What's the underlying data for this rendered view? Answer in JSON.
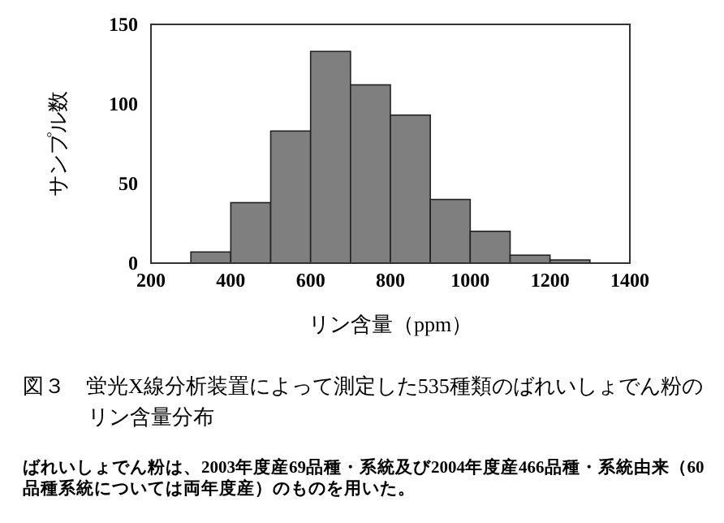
{
  "chart_data": {
    "type": "histogram",
    "title": "図３　蛍光X線分析装置によって測定した535種類のばれいしょでん粉のリン含量分布",
    "xlabel": "リン含量（ppm）",
    "ylabel": "サンプル数",
    "bins": [
      300,
      400,
      500,
      600,
      700,
      800,
      900,
      1000,
      1100,
      1200,
      1300
    ],
    "values": [
      7,
      38,
      83,
      133,
      112,
      93,
      40,
      20,
      5,
      2
    ],
    "color": "#7f7f7f",
    "xlim": [
      200,
      1400
    ],
    "xticks": [
      200,
      400,
      600,
      800,
      1000,
      1200,
      1400
    ],
    "ylim": [
      0,
      150
    ],
    "yticks": [
      0,
      50,
      100,
      150
    ],
    "annotations": [
      "ばれいしょでん粉は、2003年度産69品種・系統及び2004年度産466品種・系統由来（60品種系統については両年度産）のものを用いた。"
    ]
  }
}
